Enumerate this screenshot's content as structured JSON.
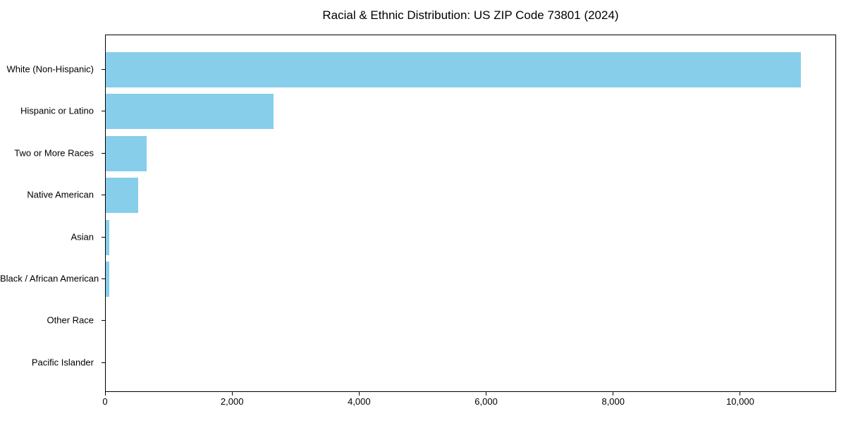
{
  "chart_data": {
    "type": "bar",
    "orientation": "horizontal",
    "title": "Racial & Ethnic Distribution: US ZIP Code 73801 (2024)",
    "categories": [
      "White (Non-Hispanic)",
      "Hispanic or Latino",
      "Two or More Races",
      "Native American",
      "Asian",
      "Black / African American",
      "Other Race",
      "Pacific Islander"
    ],
    "values": [
      10960,
      2650,
      650,
      510,
      55,
      60,
      0,
      0
    ],
    "xlabel": "",
    "ylabel": "",
    "xlim": [
      0,
      11510
    ],
    "xticks": [
      0,
      2000,
      4000,
      6000,
      8000,
      10000
    ],
    "xtick_labels": [
      "0",
      "2,000",
      "4,000",
      "6,000",
      "8,000",
      "10,000"
    ],
    "grid": false,
    "legend": null,
    "colors": {
      "bar": "#87CEEB",
      "text": "#000000",
      "axis": "#000000",
      "background": "#ffffff"
    }
  }
}
